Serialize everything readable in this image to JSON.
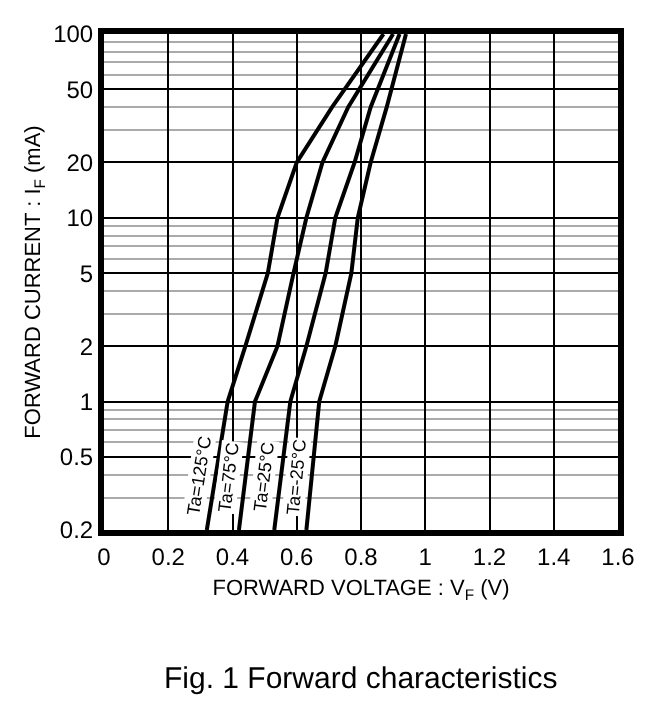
{
  "chart_data": {
    "type": "line",
    "title": "Fig. 1 Forward characteristics",
    "xlabel": "FORWARD VOLTAGE : V$_{F}$ (V)",
    "ylabel": "FORWARD CURRENT : I$_{F}$ (mA)",
    "log": "y",
    "grid": true,
    "marker": "none",
    "line_style": "solid",
    "legend": false,
    "xlim": [
      0,
      1.6
    ],
    "xticks": [
      0,
      0.2,
      0.4,
      0.6,
      0.8,
      1.0,
      1.2,
      1.4,
      1.6
    ],
    "ylim": [
      0.2,
      100
    ],
    "yticks": [
      0.2,
      0.5,
      1,
      2,
      5,
      10,
      20,
      50,
      100
    ],
    "series": [
      {
        "name": "Ta=125°C",
        "color": "#000000",
        "x": [
          0.32,
          0.385,
          0.44,
          0.51,
          0.54,
          0.6,
          0.71,
          0.87
        ],
        "values": [
          0.2,
          1,
          2,
          5,
          10,
          20,
          40,
          100
        ]
      },
      {
        "name": "Ta=75°C",
        "color": "#000000",
        "x": [
          0.42,
          0.47,
          0.54,
          0.59,
          0.63,
          0.68,
          0.76,
          0.9
        ],
        "values": [
          0.2,
          1,
          2,
          5,
          10,
          20,
          40,
          100
        ]
      },
      {
        "name": "Ta=25°C",
        "color": "#000000",
        "x": [
          0.53,
          0.58,
          0.63,
          0.69,
          0.72,
          0.78,
          0.83,
          0.92
        ],
        "values": [
          0.2,
          1,
          2,
          5,
          10,
          20,
          40,
          100
        ]
      },
      {
        "name": "Ta=-25°C",
        "color": "#000000",
        "x": [
          0.63,
          0.67,
          0.72,
          0.77,
          0.79,
          0.83,
          0.88,
          0.94
        ],
        "values": [
          0.2,
          1,
          2,
          5,
          10,
          20,
          40,
          100
        ]
      }
    ]
  }
}
